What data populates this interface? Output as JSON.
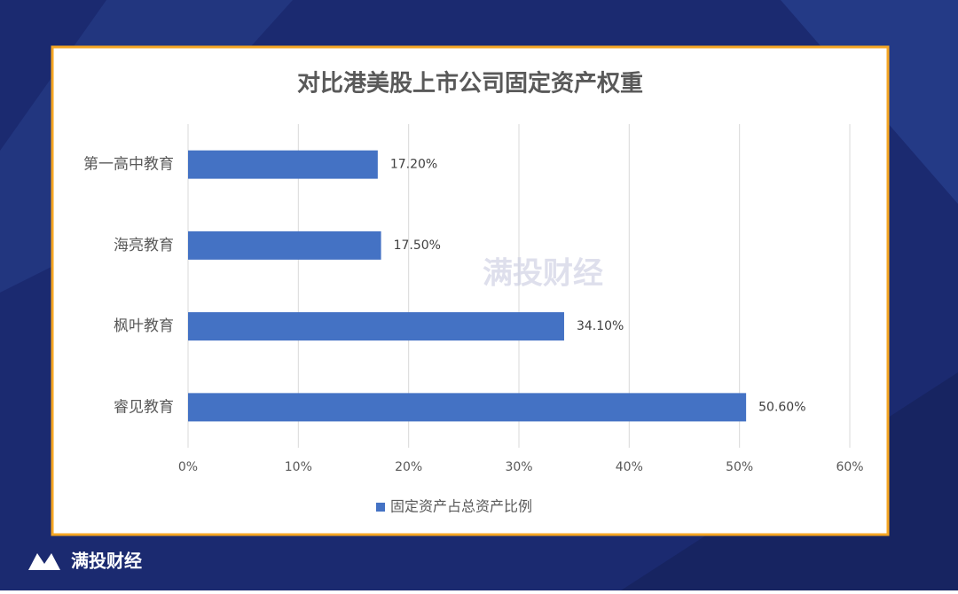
{
  "chart_data": {
    "type": "bar",
    "orientation": "horizontal",
    "title": "对比港美股上市公司固定资产权重",
    "categories": [
      "第一高中教育",
      "海亮教育",
      "枫叶教育",
      "睿见教育"
    ],
    "series": [
      {
        "name": "固定资产占总资产比例",
        "color": "#4472c4",
        "values": [
          17.2,
          17.5,
          34.1,
          50.6
        ],
        "value_labels": [
          "17.20%",
          "17.50%",
          "34.10%",
          "50.60%"
        ]
      }
    ],
    "xlim": [
      0,
      60
    ],
    "xticks": [
      {
        "value": 0,
        "label": "0%"
      },
      {
        "value": 10,
        "label": "10%"
      },
      {
        "value": 20,
        "label": "20%"
      },
      {
        "value": 30,
        "label": "30%"
      },
      {
        "value": 40,
        "label": "40%"
      },
      {
        "value": 50,
        "label": "50%"
      },
      {
        "value": 60,
        "label": "60%"
      }
    ],
    "grid": true,
    "legend": "bottom"
  },
  "watermark": "满投财经",
  "brand": "满投财经"
}
